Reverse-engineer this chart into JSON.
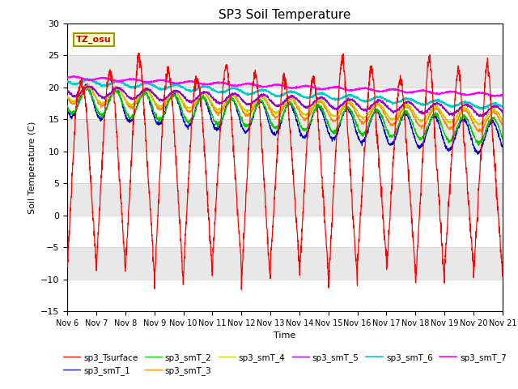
{
  "title": "SP3 Soil Temperature",
  "xlabel": "Time",
  "ylabel": "Soil Temperature (C)",
  "ylim": [
    -15,
    30
  ],
  "annotation": "TZ_osu",
  "background_color": "#ffffff",
  "plot_bg_color": "#e8e8e8",
  "series_colors": {
    "sp3_Tsurface": "#ff0000",
    "sp3_smT_1": "#0000cc",
    "sp3_smT_2": "#00cc00",
    "sp3_smT_3": "#ff8800",
    "sp3_smT_4": "#cccc00",
    "sp3_smT_5": "#9900cc",
    "sp3_smT_6": "#00cccc",
    "sp3_smT_7": "#ff00ff"
  },
  "x_tick_labels": [
    "Nov 6",
    "Nov 7",
    "Nov 8",
    "Nov 9",
    "Nov 10",
    "Nov 11",
    "Nov 12",
    "Nov 13",
    "Nov 14",
    "Nov 15",
    "Nov 16",
    "Nov 17",
    "Nov 18",
    "Nov 19",
    "Nov 20",
    "Nov 21"
  ],
  "n_days": 15,
  "pts_per_day": 144,
  "band_colors": [
    "#ffffff",
    "#e8e8e8"
  ],
  "y_bands": [
    -15,
    -10,
    -5,
    0,
    5,
    10,
    15,
    20,
    25,
    30
  ]
}
